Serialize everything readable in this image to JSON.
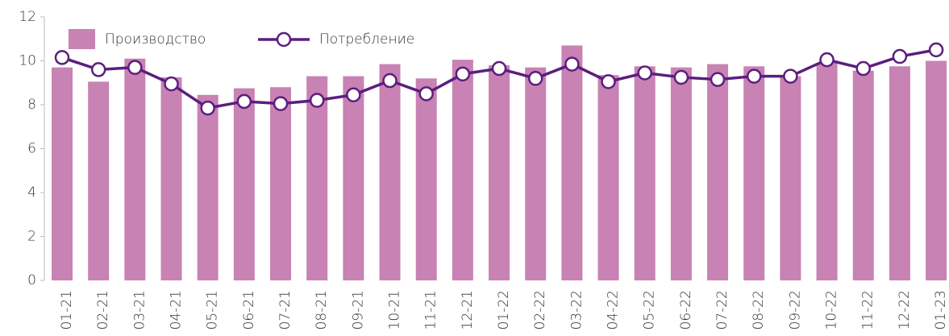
{
  "chart_data": {
    "type": "bar-line",
    "categories": [
      "01-21",
      "02-21",
      "03-21",
      "04-21",
      "05-21",
      "06-21",
      "07-21",
      "08-21",
      "09-21",
      "10-21",
      "11-21",
      "12-21",
      "01-22",
      "02-22",
      "03-22",
      "04-22",
      "05-22",
      "06-22",
      "07-22",
      "08-22",
      "09-22",
      "10-22",
      "11-22",
      "12-22",
      "01-23"
    ],
    "series": [
      {
        "name": "Производство",
        "type": "bar",
        "color": "#c882b4",
        "values": [
          9.7,
          9.05,
          10.1,
          9.25,
          8.45,
          8.75,
          8.8,
          9.3,
          9.3,
          9.85,
          9.2,
          10.05,
          9.8,
          9.7,
          10.7,
          9.35,
          9.75,
          9.7,
          9.85,
          9.75,
          9.3,
          9.9,
          9.55,
          9.75,
          10.0
        ]
      },
      {
        "name": "Потребление",
        "type": "line",
        "color": "#5c1e7e",
        "values": [
          10.15,
          9.6,
          9.7,
          8.95,
          7.85,
          8.15,
          8.05,
          8.2,
          8.45,
          9.1,
          8.5,
          9.4,
          9.65,
          9.2,
          9.85,
          9.05,
          9.45,
          9.25,
          9.15,
          9.3,
          9.3,
          10.05,
          9.65,
          10.2,
          10.5
        ]
      }
    ],
    "ylim": [
      0,
      12
    ],
    "yticks": [
      0,
      2,
      4,
      6,
      8,
      10,
      12
    ],
    "grid": false,
    "legend": "upper-left"
  }
}
